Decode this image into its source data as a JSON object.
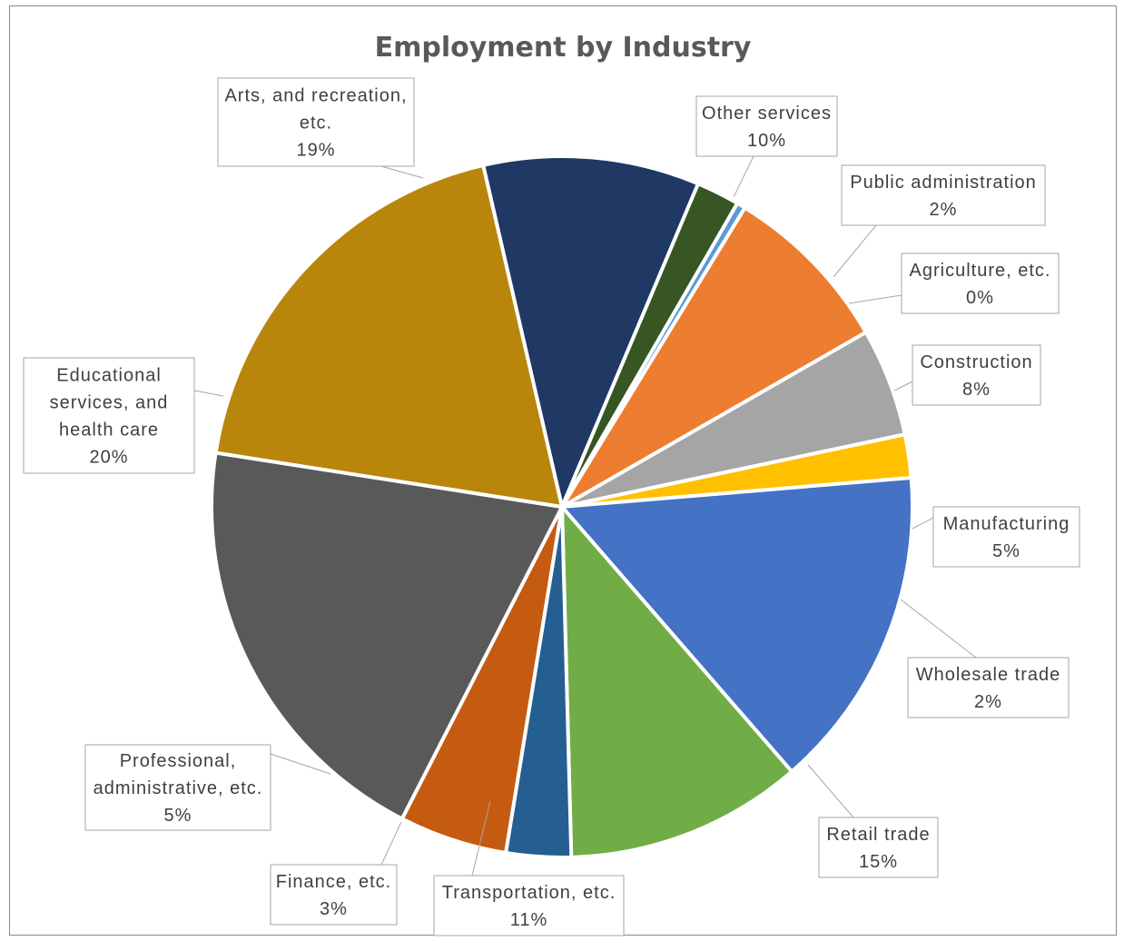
{
  "chart_data": {
    "type": "pie",
    "title": "Employment by Industry",
    "slices": [
      {
        "label": "Other services",
        "value": 10,
        "pct": "10%",
        "color": "#1f3864"
      },
      {
        "label": "Public administration",
        "value": 2,
        "pct": "2%",
        "color": "#375623"
      },
      {
        "label": "Agriculture, etc.",
        "value": 0.4,
        "pct": "0%",
        "color": "#5b9bd5"
      },
      {
        "label": "Construction",
        "value": 8,
        "pct": "8%",
        "color": "#ed7d31"
      },
      {
        "label": "Manufacturing",
        "value": 5,
        "pct": "5%",
        "color": "#a5a5a5"
      },
      {
        "label": "Wholesale trade",
        "value": 2,
        "pct": "2%",
        "color": "#ffc000"
      },
      {
        "label": "Retail trade",
        "value": 15,
        "pct": "15%",
        "color": "#4472c4"
      },
      {
        "label": "Transportation, etc.",
        "value": 11,
        "pct": "11%",
        "color": "#70ad47"
      },
      {
        "label": "Finance, etc.",
        "value": 3,
        "pct": "3%",
        "color": "#255e91"
      },
      {
        "label": "Professional, administrative, etc.",
        "value": 5,
        "pct": "5%",
        "color": "#c55a11"
      },
      {
        "label": "Educational services, and health care",
        "value": 20,
        "pct": "20%",
        "color": "#595959"
      },
      {
        "label": "Arts, and recreation, etc.",
        "value": 19,
        "pct": "19%",
        "color": "#b8860b"
      }
    ],
    "legend": "none",
    "data_labels": "callouts"
  },
  "labels": [
    {
      "lines": [
        "Other services"
      ],
      "pct": "10%"
    },
    {
      "lines": [
        "Public administration"
      ],
      "pct": "2%"
    },
    {
      "lines": [
        "Agriculture, etc."
      ],
      "pct": "0%"
    },
    {
      "lines": [
        "Construction"
      ],
      "pct": "8%"
    },
    {
      "lines": [
        "Manufacturing"
      ],
      "pct": "5%"
    },
    {
      "lines": [
        "Wholesale trade"
      ],
      "pct": "2%"
    },
    {
      "lines": [
        "Retail trade"
      ],
      "pct": "15%"
    },
    {
      "lines": [
        "Transportation, etc."
      ],
      "pct": "11%"
    },
    {
      "lines": [
        "Finance, etc."
      ],
      "pct": "3%"
    },
    {
      "lines": [
        "Professional,",
        "administrative, etc."
      ],
      "pct": "5%"
    },
    {
      "lines": [
        "Educational",
        "services, and",
        "health care"
      ],
      "pct": "20%"
    },
    {
      "lines": [
        "Arts, and recreation,",
        "etc."
      ],
      "pct": "19%"
    }
  ]
}
